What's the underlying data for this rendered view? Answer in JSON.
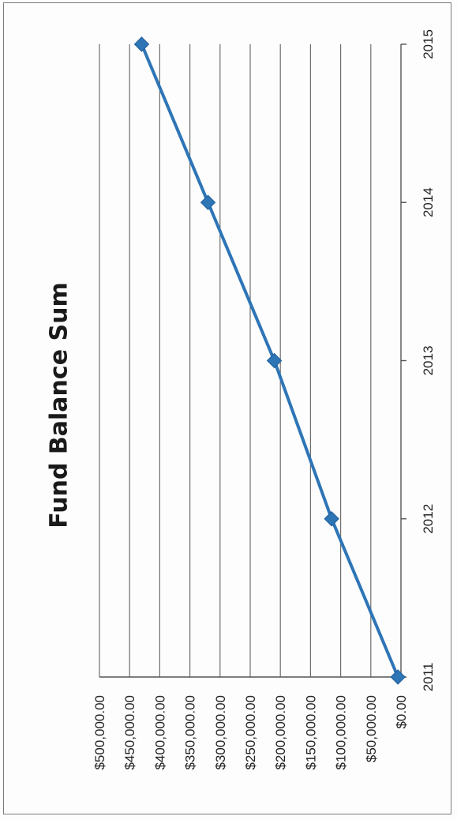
{
  "chart_data": {
    "type": "line",
    "title": "Fund Balance Sum",
    "x": [
      "2011",
      "2012",
      "2013",
      "2014",
      "2015"
    ],
    "series": [
      {
        "values": [
          5000,
          115000,
          210000,
          320000,
          430000
        ],
        "color": "#2E75B6",
        "marker": "diamond"
      }
    ],
    "ylim": [
      0,
      500000
    ],
    "yticks": [
      "$0.00",
      "$50,000.00",
      "$100,000.00",
      "$150,000.00",
      "$200,000.00",
      "$250,000.00",
      "$300,000.00",
      "$350,000.00",
      "$400,000.00",
      "$450,000.00",
      "$500,000.00"
    ],
    "grid": true,
    "orientation": "rotated-90-clockwise"
  }
}
